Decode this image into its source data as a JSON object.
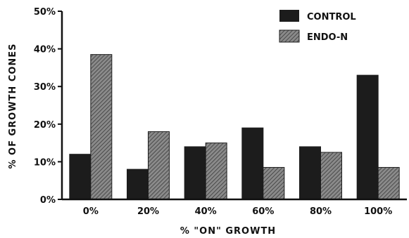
{
  "chart_data": {
    "type": "bar",
    "title": "",
    "xlabel": "% \"ON\" GROWTH",
    "ylabel": "% OF GROWTH CONES",
    "categories": [
      "0%",
      "20%",
      "40%",
      "60%",
      "80%",
      "100%"
    ],
    "series": [
      {
        "name": "CONTROL",
        "values": [
          12,
          8,
          14,
          19,
          14,
          33
        ]
      },
      {
        "name": "ENDO-N",
        "values": [
          38.5,
          18,
          15,
          8.5,
          12.5,
          8.5
        ]
      }
    ],
    "ylim": [
      0,
      50
    ],
    "yticks": [
      "0%",
      "10%",
      "20%",
      "30%",
      "40%",
      "50%"
    ],
    "grid": false,
    "legend_position": "top-right"
  },
  "colors": {
    "control": "#1c1c1c",
    "endo_n_fill": "#8a8a8a",
    "endo_n_hatch": "#3a3a3a",
    "axis": "#111111"
  }
}
